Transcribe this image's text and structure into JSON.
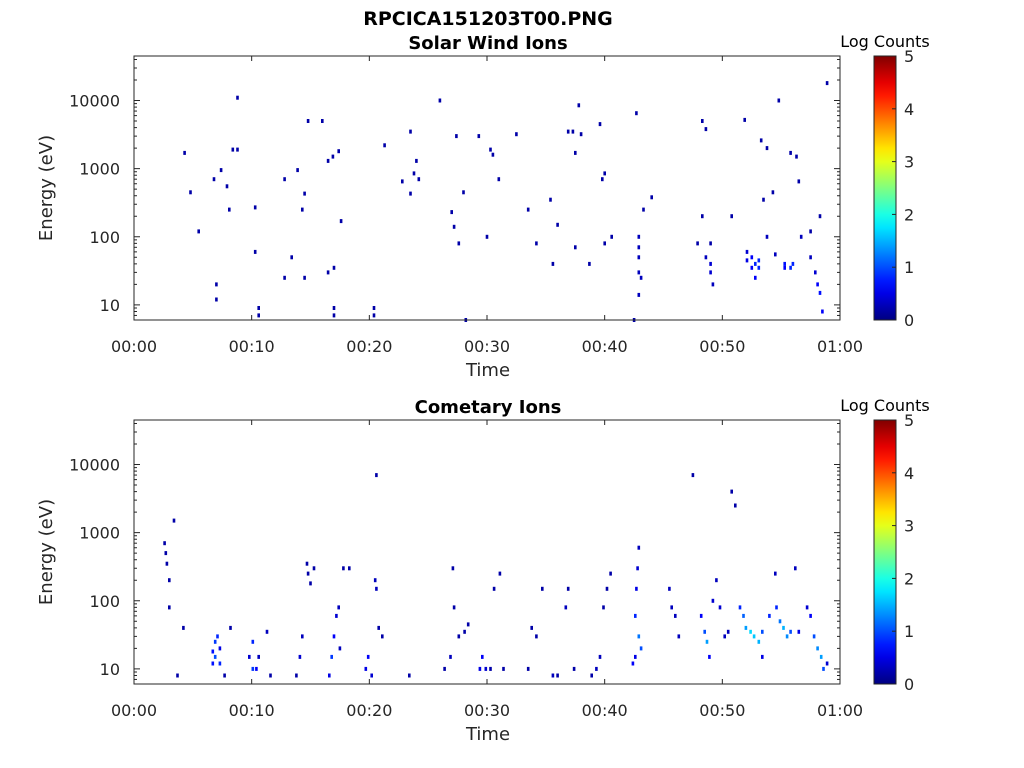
{
  "figure": {
    "title": "RPCICA151203T00.PNG"
  },
  "chart_data": [
    {
      "type": "heatmap",
      "title": "Solar Wind Ions",
      "xlabel": "Time",
      "ylabel": "Energy (eV)",
      "x_ticks": [
        "00:00",
        "00:10",
        "00:20",
        "00:30",
        "00:40",
        "00:50",
        "01:00"
      ],
      "xlim_minutes": [
        0,
        60
      ],
      "y_ticks": [
        "10",
        "100",
        "1000",
        "10000"
      ],
      "y_tick_values": [
        10,
        100,
        1000,
        10000
      ],
      "ylim": [
        6,
        45000
      ],
      "y_scale": "log",
      "grid": false,
      "colorbar": {
        "label": "Log Counts",
        "range": [
          0,
          5
        ],
        "ticks": [
          "0",
          "1",
          "2",
          "3",
          "4",
          "5"
        ],
        "colormap": "jet"
      },
      "cells": [
        [
          4.3,
          1700,
          0.2
        ],
        [
          4.8,
          450,
          0.2
        ],
        [
          5.5,
          120,
          0.2
        ],
        [
          6.8,
          700,
          0.2
        ],
        [
          7.0,
          12,
          0.2
        ],
        [
          7.0,
          20,
          0.2
        ],
        [
          7.4,
          950,
          0.2
        ],
        [
          7.9,
          550,
          0.2
        ],
        [
          8.1,
          250,
          0.2
        ],
        [
          8.4,
          1900,
          0.2
        ],
        [
          8.8,
          1900,
          0.2
        ],
        [
          8.8,
          11000,
          0.2
        ],
        [
          10.3,
          270,
          0.2
        ],
        [
          10.3,
          60,
          0.2
        ],
        [
          10.6,
          7,
          0.2
        ],
        [
          10.6,
          9,
          0.2
        ],
        [
          12.8,
          700,
          0.2
        ],
        [
          12.8,
          25,
          0.2
        ],
        [
          13.4,
          50,
          0.2
        ],
        [
          13.9,
          950,
          0.2
        ],
        [
          14.3,
          250,
          0.2
        ],
        [
          14.5,
          430,
          0.2
        ],
        [
          14.5,
          25,
          0.2
        ],
        [
          14.8,
          5000,
          0.2
        ],
        [
          16.0,
          5000,
          0.2
        ],
        [
          16.5,
          1300,
          0.2
        ],
        [
          16.5,
          30,
          0.2
        ],
        [
          16.9,
          1500,
          0.2
        ],
        [
          17.0,
          35,
          0.2
        ],
        [
          17.0,
          7,
          0.2
        ],
        [
          17.0,
          9,
          0.2
        ],
        [
          17.4,
          1800,
          0.2
        ],
        [
          17.6,
          170,
          0.2
        ],
        [
          20.4,
          7,
          0.2
        ],
        [
          20.4,
          9,
          0.2
        ],
        [
          21.3,
          2200,
          0.2
        ],
        [
          22.8,
          650,
          0.2
        ],
        [
          23.5,
          3500,
          0.2
        ],
        [
          23.5,
          430,
          0.2
        ],
        [
          23.8,
          850,
          0.2
        ],
        [
          24.0,
          1300,
          0.2
        ],
        [
          24.2,
          700,
          0.2
        ],
        [
          26.0,
          10000,
          0.2
        ],
        [
          27.0,
          230,
          0.2
        ],
        [
          27.2,
          140,
          0.2
        ],
        [
          27.4,
          3000,
          0.2
        ],
        [
          27.6,
          80,
          0.2
        ],
        [
          28.0,
          450,
          0.2
        ],
        [
          28.2,
          6,
          0.2
        ],
        [
          29.3,
          3000,
          0.2
        ],
        [
          30.0,
          100,
          0.2
        ],
        [
          30.3,
          1900,
          0.2
        ],
        [
          30.5,
          1600,
          0.2
        ],
        [
          31.0,
          700,
          0.2
        ],
        [
          32.5,
          3200,
          0.2
        ],
        [
          33.5,
          250,
          0.2
        ],
        [
          34.2,
          80,
          0.2
        ],
        [
          35.4,
          350,
          0.2
        ],
        [
          35.6,
          40,
          0.2
        ],
        [
          36.0,
          150,
          0.2
        ],
        [
          36.9,
          3500,
          0.2
        ],
        [
          37.3,
          3500,
          0.2
        ],
        [
          37.5,
          1700,
          0.2
        ],
        [
          37.5,
          70,
          0.2
        ],
        [
          37.8,
          8500,
          0.2
        ],
        [
          38.0,
          3200,
          0.2
        ],
        [
          38.7,
          40,
          0.2
        ],
        [
          39.6,
          4500,
          0.2
        ],
        [
          39.8,
          700,
          0.2
        ],
        [
          40.0,
          850,
          0.2
        ],
        [
          40.0,
          80,
          0.2
        ],
        [
          40.6,
          100,
          0.2
        ],
        [
          42.5,
          6,
          0.2
        ],
        [
          42.7,
          6500,
          0.2
        ],
        [
          42.9,
          100,
          0.3
        ],
        [
          42.9,
          70,
          0.3
        ],
        [
          42.9,
          50,
          0.3
        ],
        [
          42.9,
          30,
          0.3
        ],
        [
          42.9,
          14,
          0.3
        ],
        [
          43.1,
          25,
          0.3
        ],
        [
          43.3,
          250,
          0.2
        ],
        [
          44.0,
          380,
          0.2
        ],
        [
          47.9,
          80,
          0.2
        ],
        [
          48.3,
          200,
          0.2
        ],
        [
          48.3,
          5000,
          0.2
        ],
        [
          48.6,
          3800,
          0.2
        ],
        [
          48.6,
          50,
          0.3
        ],
        [
          49.0,
          80,
          0.2
        ],
        [
          49.0,
          40,
          0.4
        ],
        [
          49.0,
          30,
          0.4
        ],
        [
          49.2,
          20,
          0.3
        ],
        [
          50.8,
          200,
          0.2
        ],
        [
          51.9,
          5200,
          0.2
        ],
        [
          52.1,
          60,
          0.4
        ],
        [
          52.1,
          45,
          0.5
        ],
        [
          52.5,
          50,
          0.6
        ],
        [
          52.5,
          35,
          0.6
        ],
        [
          52.8,
          40,
          0.8
        ],
        [
          52.8,
          25,
          0.6
        ],
        [
          53.1,
          45,
          0.8
        ],
        [
          53.1,
          35,
          0.8
        ],
        [
          53.3,
          2600,
          0.2
        ],
        [
          53.5,
          350,
          0.2
        ],
        [
          53.8,
          2000,
          0.2
        ],
        [
          53.8,
          100,
          0.3
        ],
        [
          54.3,
          450,
          0.2
        ],
        [
          54.5,
          55,
          0.3
        ],
        [
          54.8,
          10000,
          0.2
        ],
        [
          55.3,
          35,
          0.6
        ],
        [
          55.3,
          40,
          0.7
        ],
        [
          55.8,
          1700,
          0.2
        ],
        [
          55.8,
          35,
          0.8
        ],
        [
          56.0,
          40,
          0.8
        ],
        [
          56.3,
          1500,
          0.2
        ],
        [
          56.5,
          650,
          0.2
        ],
        [
          56.7,
          100,
          0.3
        ],
        [
          57.5,
          120,
          0.2
        ],
        [
          57.5,
          50,
          0.3
        ],
        [
          57.9,
          30,
          0.4
        ],
        [
          58.1,
          20,
          0.6
        ],
        [
          58.3,
          200,
          0.2
        ],
        [
          58.3,
          15,
          0.7
        ],
        [
          58.5,
          8,
          0.6
        ],
        [
          58.9,
          18000,
          0.2
        ]
      ]
    },
    {
      "type": "heatmap",
      "title": "Cometary Ions",
      "xlabel": "Time",
      "ylabel": "Energy (eV)",
      "x_ticks": [
        "00:00",
        "00:10",
        "00:20",
        "00:30",
        "00:40",
        "00:50",
        "01:00"
      ],
      "xlim_minutes": [
        0,
        60
      ],
      "y_ticks": [
        "10",
        "100",
        "1000",
        "10000"
      ],
      "y_tick_values": [
        10,
        100,
        1000,
        10000
      ],
      "ylim": [
        6,
        45000
      ],
      "y_scale": "log",
      "grid": false,
      "colorbar": {
        "label": "Log Counts",
        "range": [
          0,
          5
        ],
        "ticks": [
          "0",
          "1",
          "2",
          "3",
          "4",
          "5"
        ],
        "colormap": "jet"
      },
      "cells": [
        [
          2.6,
          700,
          0.2
        ],
        [
          2.7,
          500,
          0.2
        ],
        [
          2.8,
          350,
          0.2
        ],
        [
          3.0,
          200,
          0.2
        ],
        [
          3.0,
          80,
          0.2
        ],
        [
          3.4,
          1500,
          0.2
        ],
        [
          4.2,
          40,
          0.2
        ],
        [
          3.7,
          8,
          0.2
        ],
        [
          6.7,
          12,
          0.7
        ],
        [
          6.7,
          18,
          0.7
        ],
        [
          6.9,
          25,
          0.9
        ],
        [
          6.9,
          15,
          1.0
        ],
        [
          7.1,
          30,
          0.8
        ],
        [
          7.3,
          12,
          0.8
        ],
        [
          7.3,
          20,
          0.5
        ],
        [
          7.7,
          8,
          0.2
        ],
        [
          8.2,
          40,
          0.2
        ],
        [
          9.8,
          15,
          0.4
        ],
        [
          10.1,
          25,
          0.8
        ],
        [
          10.1,
          10,
          0.9
        ],
        [
          10.4,
          10,
          0.6
        ],
        [
          10.6,
          15,
          0.3
        ],
        [
          11.3,
          35,
          0.3
        ],
        [
          11.6,
          8,
          0.2
        ],
        [
          13.8,
          8,
          0.2
        ],
        [
          14.1,
          15,
          0.4
        ],
        [
          14.3,
          30,
          0.3
        ],
        [
          14.7,
          350,
          0.2
        ],
        [
          14.8,
          250,
          0.2
        ],
        [
          15.0,
          180,
          0.2
        ],
        [
          15.3,
          300,
          0.2
        ],
        [
          16.6,
          8,
          0.5
        ],
        [
          16.8,
          15,
          0.9
        ],
        [
          17.0,
          30,
          0.6
        ],
        [
          17.2,
          60,
          0.4
        ],
        [
          17.4,
          80,
          0.3
        ],
        [
          17.5,
          20,
          0.3
        ],
        [
          17.8,
          300,
          0.2
        ],
        [
          18.3,
          300,
          0.2
        ],
        [
          19.7,
          10,
          0.5
        ],
        [
          19.9,
          15,
          0.6
        ],
        [
          20.2,
          8,
          0.4
        ],
        [
          20.5,
          200,
          0.3
        ],
        [
          20.6,
          150,
          0.3
        ],
        [
          20.6,
          7000,
          0.2
        ],
        [
          20.8,
          40,
          0.2
        ],
        [
          21.1,
          30,
          0.2
        ],
        [
          23.4,
          8,
          0.2
        ],
        [
          26.4,
          10,
          0.2
        ],
        [
          26.9,
          15,
          0.3
        ],
        [
          27.2,
          80,
          0.2
        ],
        [
          27.6,
          30,
          0.2
        ],
        [
          28.1,
          35,
          0.2
        ],
        [
          28.4,
          45,
          0.2
        ],
        [
          27.1,
          300,
          0.2
        ],
        [
          29.4,
          10,
          0.5
        ],
        [
          29.6,
          15,
          0.6
        ],
        [
          29.9,
          10,
          0.4
        ],
        [
          30.3,
          10,
          0.2
        ],
        [
          30.6,
          150,
          0.2
        ],
        [
          31.1,
          250,
          0.2
        ],
        [
          31.4,
          10,
          0.2
        ],
        [
          33.5,
          10,
          0.2
        ],
        [
          33.8,
          40,
          0.2
        ],
        [
          34.2,
          30,
          0.2
        ],
        [
          34.7,
          150,
          0.2
        ],
        [
          35.6,
          8,
          0.3
        ],
        [
          36.0,
          8,
          0.2
        ],
        [
          36.7,
          80,
          0.3
        ],
        [
          36.9,
          150,
          0.2
        ],
        [
          37.4,
          10,
          0.2
        ],
        [
          38.9,
          8,
          0.2
        ],
        [
          39.3,
          10,
          0.3
        ],
        [
          39.6,
          15,
          0.3
        ],
        [
          39.9,
          80,
          0.2
        ],
        [
          40.2,
          150,
          0.2
        ],
        [
          40.5,
          250,
          0.2
        ],
        [
          42.4,
          12,
          0.6
        ],
        [
          42.6,
          60,
          0.8
        ],
        [
          42.7,
          150,
          0.5
        ],
        [
          42.8,
          300,
          0.4
        ],
        [
          42.9,
          600,
          0.3
        ],
        [
          42.9,
          30,
          1.2
        ],
        [
          43.1,
          20,
          1.0
        ],
        [
          42.6,
          15,
          0.5
        ],
        [
          45.5,
          150,
          0.3
        ],
        [
          45.7,
          80,
          0.3
        ],
        [
          46.0,
          60,
          0.3
        ],
        [
          46.3,
          30,
          0.3
        ],
        [
          47.5,
          7000,
          0.2
        ],
        [
          48.2,
          60,
          0.6
        ],
        [
          48.5,
          35,
          1.0
        ],
        [
          48.7,
          25,
          1.4
        ],
        [
          48.9,
          15,
          0.6
        ],
        [
          49.2,
          100,
          0.4
        ],
        [
          49.5,
          200,
          0.3
        ],
        [
          49.8,
          80,
          0.4
        ],
        [
          50.2,
          30,
          0.3
        ],
        [
          50.5,
          35,
          0.3
        ],
        [
          50.8,
          4000,
          0.2
        ],
        [
          51.1,
          2500,
          0.2
        ],
        [
          51.5,
          80,
          0.8
        ],
        [
          51.8,
          60,
          1.1
        ],
        [
          52.0,
          40,
          1.4
        ],
        [
          52.4,
          35,
          1.7
        ],
        [
          52.7,
          30,
          1.6
        ],
        [
          53.1,
          25,
          1.5
        ],
        [
          53.4,
          35,
          1.0
        ],
        [
          53.4,
          15,
          0.5
        ],
        [
          54.0,
          60,
          0.8
        ],
        [
          54.5,
          250,
          0.3
        ],
        [
          54.6,
          80,
          0.8
        ],
        [
          54.9,
          50,
          1.2
        ],
        [
          55.2,
          40,
          1.5
        ],
        [
          55.5,
          30,
          1.3
        ],
        [
          55.8,
          35,
          1.0
        ],
        [
          56.2,
          300,
          0.3
        ],
        [
          56.5,
          35,
          0.5
        ],
        [
          57.2,
          80,
          0.4
        ],
        [
          57.5,
          60,
          0.6
        ],
        [
          57.8,
          30,
          1.0
        ],
        [
          58.1,
          20,
          1.3
        ],
        [
          58.4,
          15,
          1.4
        ],
        [
          58.6,
          10,
          1.0
        ],
        [
          58.9,
          12,
          0.4
        ]
      ]
    }
  ]
}
